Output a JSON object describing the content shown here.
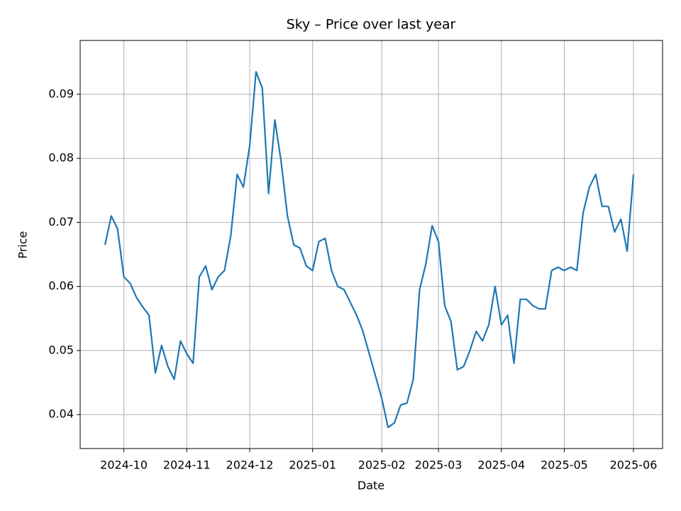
{
  "chart_data": {
    "type": "line",
    "title": "Sky – Price over last year",
    "xlabel": "Date",
    "ylabel": "Price",
    "x": [
      null,
      null,
      null,
      "2024-10",
      null,
      null,
      null,
      null,
      null,
      null,
      null,
      null,
      null,
      "2024-11",
      null,
      null,
      null,
      null,
      null,
      null,
      null,
      null,
      null,
      "2024-12",
      null,
      null,
      null,
      null,
      null,
      null,
      null,
      null,
      null,
      "2025-01",
      null,
      null,
      null,
      null,
      null,
      null,
      null,
      null,
      null,
      null,
      "2025-02",
      null,
      null,
      null,
      null,
      null,
      null,
      null,
      null,
      "2025-03",
      null,
      null,
      null,
      null,
      null,
      null,
      null,
      null,
      null,
      "2025-04",
      null,
      null,
      null,
      null,
      null,
      null,
      null,
      null,
      null,
      "2025-05",
      null,
      null,
      null,
      null,
      null,
      null,
      null,
      null,
      null,
      null,
      "2025-06"
    ],
    "series": [
      {
        "name": "Price",
        "color": "#1f77b4",
        "values": [
          0.0665,
          0.071,
          0.069,
          0.0615,
          0.0605,
          0.0583,
          0.0568,
          0.0555,
          0.0465,
          0.0508,
          0.0475,
          0.0455,
          0.0515,
          0.0495,
          0.048,
          0.0615,
          0.0632,
          0.0595,
          0.0615,
          0.0625,
          0.068,
          0.0775,
          0.0755,
          0.082,
          0.0935,
          0.091,
          0.0745,
          0.086,
          0.0795,
          0.071,
          0.0665,
          0.066,
          0.0632,
          0.0625,
          0.067,
          0.0675,
          0.0625,
          0.06,
          0.0595,
          0.0575,
          0.0555,
          0.053,
          0.0495,
          0.046,
          0.0425,
          0.038,
          0.0387,
          0.0415,
          0.0418,
          0.0455,
          0.0595,
          0.0635,
          0.0695,
          0.067,
          0.057,
          0.0545,
          0.047,
          0.0475,
          0.05,
          0.053,
          0.0515,
          0.054,
          0.06,
          0.054,
          0.0555,
          0.048,
          0.058,
          0.058,
          0.057,
          0.0565,
          0.0565,
          0.0625,
          0.063,
          0.0625,
          0.063,
          0.0625,
          0.0715,
          0.0755,
          0.0775,
          0.0725,
          0.0725,
          0.0685,
          0.0705,
          0.0655,
          0.0775
        ]
      }
    ],
    "ylim": [
      0.0347,
      0.0984
    ],
    "yticks": [
      0.04,
      0.05,
      0.06,
      0.07,
      0.08,
      0.09
    ],
    "grid": true
  }
}
